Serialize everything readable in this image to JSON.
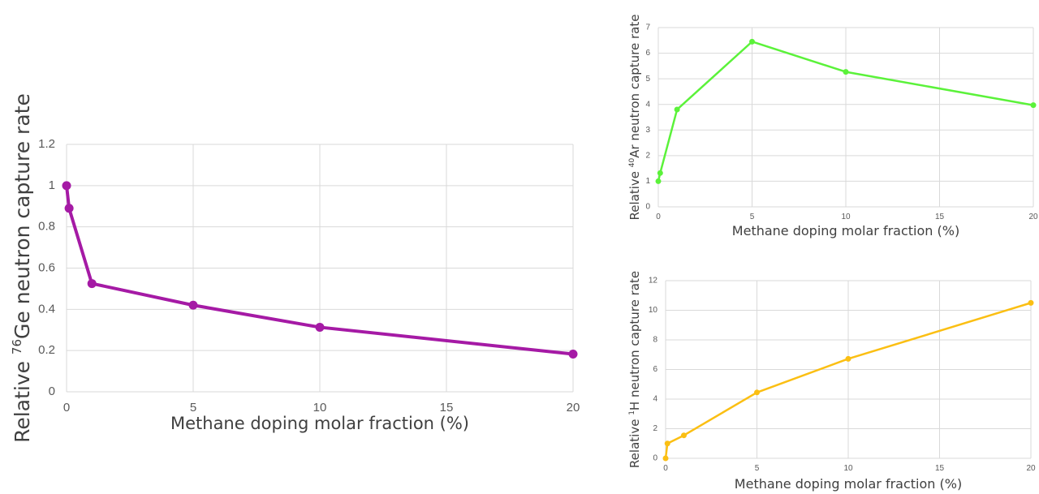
{
  "chart_data": [
    {
      "id": "ge",
      "type": "line",
      "color": "#a51aa5",
      "xlabel": "Methane doping molar fraction (%)",
      "ylabel": {
        "pre": "Relative ",
        "sup": "76",
        "post": "Ge neutron capture rate"
      },
      "xlim": [
        0,
        20
      ],
      "ylim": [
        0,
        1.2
      ],
      "xticks": [
        "0",
        "5",
        "10",
        "15",
        "20"
      ],
      "yticks": [
        "0",
        "0.2",
        "0.4",
        "0.6",
        "0.8",
        "1",
        "1.2"
      ],
      "grid": true,
      "series": [
        {
          "x": [
            0,
            0.1,
            1,
            5,
            10,
            20
          ],
          "y": [
            1.0,
            0.89,
            0.525,
            0.42,
            0.313,
            0.183
          ]
        }
      ]
    },
    {
      "id": "ar",
      "type": "line",
      "color": "#5bf23a",
      "xlabel": "Methane doping molar fraction (%)",
      "ylabel": {
        "pre": "Relative ",
        "sup": "40",
        "post": "Ar neutron capture rate"
      },
      "xlim": [
        0,
        20
      ],
      "ylim": [
        0,
        7
      ],
      "xticks": [
        "0",
        "5",
        "10",
        "15",
        "20"
      ],
      "yticks": [
        "0",
        "1",
        "2",
        "3",
        "4",
        "5",
        "6",
        "7"
      ],
      "grid": true,
      "series": [
        {
          "x": [
            0,
            0.1,
            1,
            5,
            10,
            20
          ],
          "y": [
            1.0,
            1.32,
            3.8,
            6.45,
            5.27,
            3.97
          ]
        }
      ]
    },
    {
      "id": "h",
      "type": "line",
      "color": "#fbbf13",
      "xlabel": "Methane doping molar fraction (%)",
      "ylabel": {
        "pre": "Relative  ",
        "sup": "1",
        "post": "H  neutron capture rate"
      },
      "xlim": [
        0,
        20
      ],
      "ylim": [
        0,
        12
      ],
      "xticks": [
        "0",
        "5",
        "10",
        "15",
        "20"
      ],
      "yticks": [
        "0",
        "2",
        "4",
        "6",
        "8",
        "10",
        "12"
      ],
      "grid": true,
      "series": [
        {
          "x": [
            0,
            0.1,
            1,
            5,
            10,
            20
          ],
          "y": [
            0,
            1.0,
            1.55,
            4.45,
            6.72,
            10.5
          ]
        }
      ]
    }
  ]
}
